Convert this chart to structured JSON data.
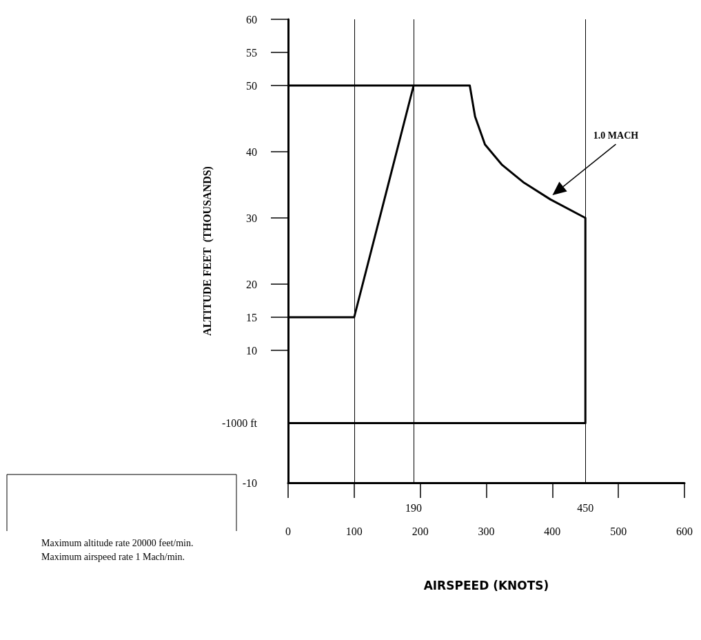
{
  "chart_data": {
    "type": "line",
    "xlabel": "AIRSPEED (KNOTS)",
    "ylabel": "ALTITUDE FEET  (THOUSANDS)",
    "xlim": [
      0,
      600
    ],
    "xticks": [
      0,
      100,
      200,
      300,
      400,
      500,
      600
    ],
    "ylim": [
      -10,
      60
    ],
    "yticks": [
      -10,
      10,
      15,
      20,
      30,
      40,
      50,
      55,
      60
    ],
    "series": [
      {
        "color": "#000000",
        "x": [
          0,
          100,
          190
        ],
        "values": [
          15,
          15,
          50
        ]
      },
      {
        "color": "#000000",
        "x": [
          0,
          275,
          283,
          298,
          324,
          356,
          397,
          450,
          450,
          0
        ],
        "values": [
          50,
          50,
          45.3,
          41.1,
          38,
          35.4,
          32.8,
          30,
          -1,
          -1
        ]
      }
    ],
    "ref_lines": [
      {
        "axis": "x",
        "value": 100,
        "label": null
      },
      {
        "axis": "x",
        "value": 190,
        "label": "190"
      },
      {
        "axis": "x",
        "value": 450,
        "label": "450"
      }
    ],
    "annotations": [
      "1.0 MACH",
      {
        "text": "-1000 ft",
        "x": 0,
        "y": -1
      },
      "Maximum altitude rate 20000 feet/min.",
      "Maximum airspeed rate 1 Mach/min."
    ],
    "grid": false,
    "marker": "none",
    "line_style": "solid"
  }
}
